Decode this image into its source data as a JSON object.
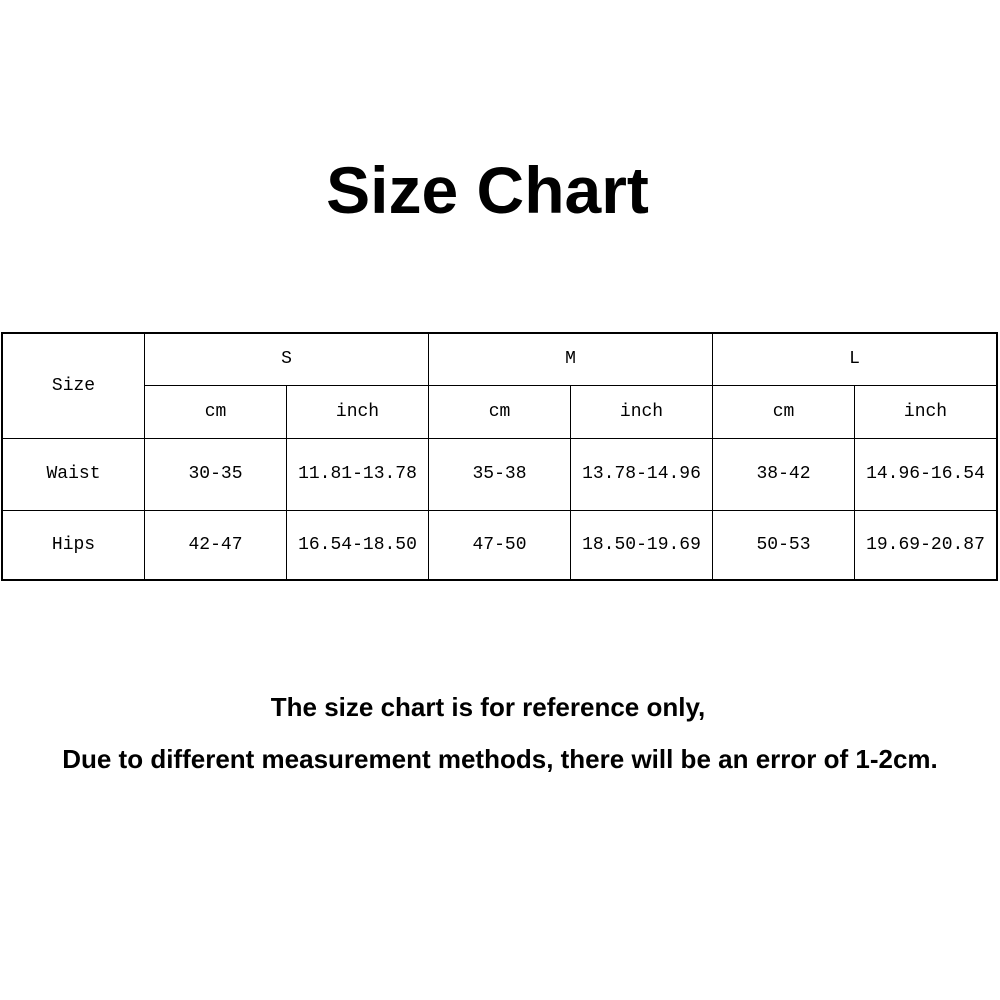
{
  "title": "Size Chart",
  "table": {
    "corner": "Size",
    "sizes": [
      "S",
      "M",
      "L"
    ],
    "units": [
      "cm",
      "inch",
      "cm",
      "inch",
      "cm",
      "inch"
    ],
    "rows": [
      {
        "label": "Waist",
        "values": [
          "30-35",
          "11.81-13.78",
          "35-38",
          "13.78-14.96",
          "38-42",
          "14.96-16.54"
        ]
      },
      {
        "label": "Hips",
        "values": [
          "42-47",
          "16.54-18.50",
          "47-50",
          "18.50-19.69",
          "50-53",
          "19.69-20.87"
        ]
      }
    ]
  },
  "notes": [
    "The size chart is for reference only,",
    "Due to different measurement methods, there will be an error of 1-2cm."
  ]
}
